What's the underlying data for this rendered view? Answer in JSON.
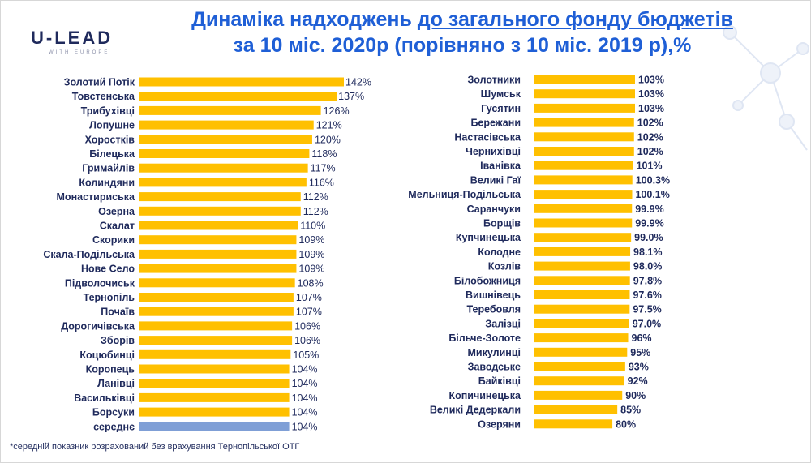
{
  "header": {
    "logo_text": "U-LEAD",
    "logo_sub": "WITH EUROPE",
    "title_part1": "Динаміка надходжень ",
    "title_part2": "до загального фонду бюджетів",
    "title_line2": "за 10 міс. 2020р (порівняно з 10 міс. 2019 р),%"
  },
  "footnote": "*середній показник розрахований без врахування Тернопільської ОТГ",
  "colors": {
    "bar": "#ffc000",
    "average_bar": "#7f9fd6",
    "label": "#1f2a5c",
    "title": "#1f5fd6"
  },
  "chart_data": [
    {
      "type": "bar",
      "orientation": "horizontal",
      "categories": [
        "Золотий Потік",
        "Товстенська",
        "Трибухівці",
        "Лопушне",
        "Хоростків",
        "Білецька",
        "Гримайлів",
        "Колиндяни",
        "Монастириська",
        "Озерна",
        "Скалат",
        "Скорики",
        "Скала-Подільська",
        "Нове Село",
        "Підволочиськ",
        "Тернопіль",
        "Почаїв",
        "Дорогичівська",
        "Зборів",
        "Коцюбинці",
        "Коропець",
        "Ланівці",
        "Васильківці",
        "Борсуки",
        "середнє"
      ],
      "values": [
        142,
        137,
        126,
        121,
        120,
        118,
        117,
        116,
        112,
        112,
        110,
        109,
        109,
        109,
        108,
        107,
        107,
        106,
        106,
        105,
        104,
        104,
        104,
        104,
        104
      ],
      "labels": [
        "142%",
        "137%",
        "126%",
        "121%",
        "120%",
        "118%",
        "117%",
        "116%",
        "112%",
        "112%",
        "110%",
        "109%",
        "109%",
        "109%",
        "108%",
        "107%",
        "107%",
        "106%",
        "106%",
        "105%",
        "104%",
        "104%",
        "104%",
        "104%",
        "104%"
      ],
      "highlight": "середнє",
      "xlim": [
        0,
        145
      ]
    },
    {
      "type": "bar",
      "orientation": "horizontal",
      "categories": [
        "Золотники",
        "Шумськ",
        "Гусятин",
        "Бережани",
        "Настасівська",
        "Черниxівці",
        "Іванівка",
        "Великі Гаї",
        "Мельниця-Подільська",
        "Саранчуки",
        "Борщів",
        "Купчинецька",
        "Колодне",
        "Козлів",
        "Білобожниця",
        "Вишнівець",
        "Теребовля",
        "Залізці",
        "Більче-Золоте",
        "Микулинці",
        "Заводське",
        "Байківці",
        "Копичинецька",
        "Великі Дедеркали",
        "Озеряни"
      ],
      "values": [
        103,
        103,
        103,
        102,
        102,
        102,
        101,
        100.3,
        100.1,
        99.9,
        99.9,
        99.0,
        98.1,
        98.0,
        97.8,
        97.6,
        97.5,
        97.0,
        96,
        95,
        93,
        92,
        90,
        85,
        80
      ],
      "labels": [
        "103%",
        "103%",
        "103%",
        "102%",
        "102%",
        "102%",
        "101%",
        "100.3%",
        "100.1%",
        "99.9%",
        "99.9%",
        "99.0%",
        "98.1%",
        "98.0%",
        "97.8%",
        "97.6%",
        "97.5%",
        "97.0%",
        "96%",
        "95%",
        "93%",
        "92%",
        "90%",
        "85%",
        "80%"
      ],
      "xlim": [
        0,
        105
      ]
    }
  ]
}
